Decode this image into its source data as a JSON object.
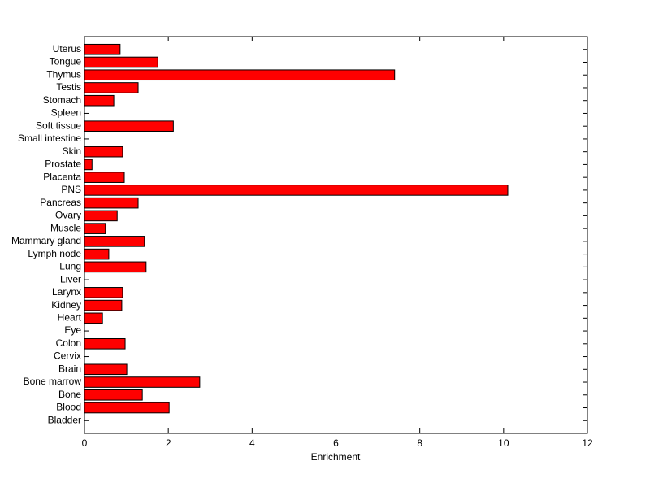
{
  "chart_data": {
    "type": "barh",
    "xlabel": "Enrichment",
    "categories": [
      "Uterus",
      "Tongue",
      "Thymus",
      "Testis",
      "Stomach",
      "Spleen",
      "Soft tissue",
      "Small intestine",
      "Skin",
      "Prostate",
      "Placenta",
      "PNS",
      "Pancreas",
      "Ovary",
      "Muscle",
      "Mammary gland",
      "Lymph node",
      "Lung",
      "Liver",
      "Larynx",
      "Kidney",
      "Heart",
      "Eye",
      "Colon",
      "Cervix",
      "Brain",
      "Bone marrow",
      "Bone",
      "Blood",
      "Bladder"
    ],
    "values": [
      0.85,
      1.75,
      7.4,
      1.28,
      0.7,
      0,
      2.12,
      0,
      0.91,
      0.18,
      0.95,
      10.1,
      1.28,
      0.78,
      0.5,
      1.43,
      0.58,
      1.47,
      0,
      0.91,
      0.89,
      0.43,
      0,
      0.97,
      0,
      1.01,
      2.75,
      1.38,
      2.02,
      0
    ],
    "color": "#ff0000",
    "xlim": [
      0,
      12
    ],
    "xticks": [
      0,
      2,
      4,
      6,
      8,
      10,
      12
    ],
    "grid": false
  }
}
